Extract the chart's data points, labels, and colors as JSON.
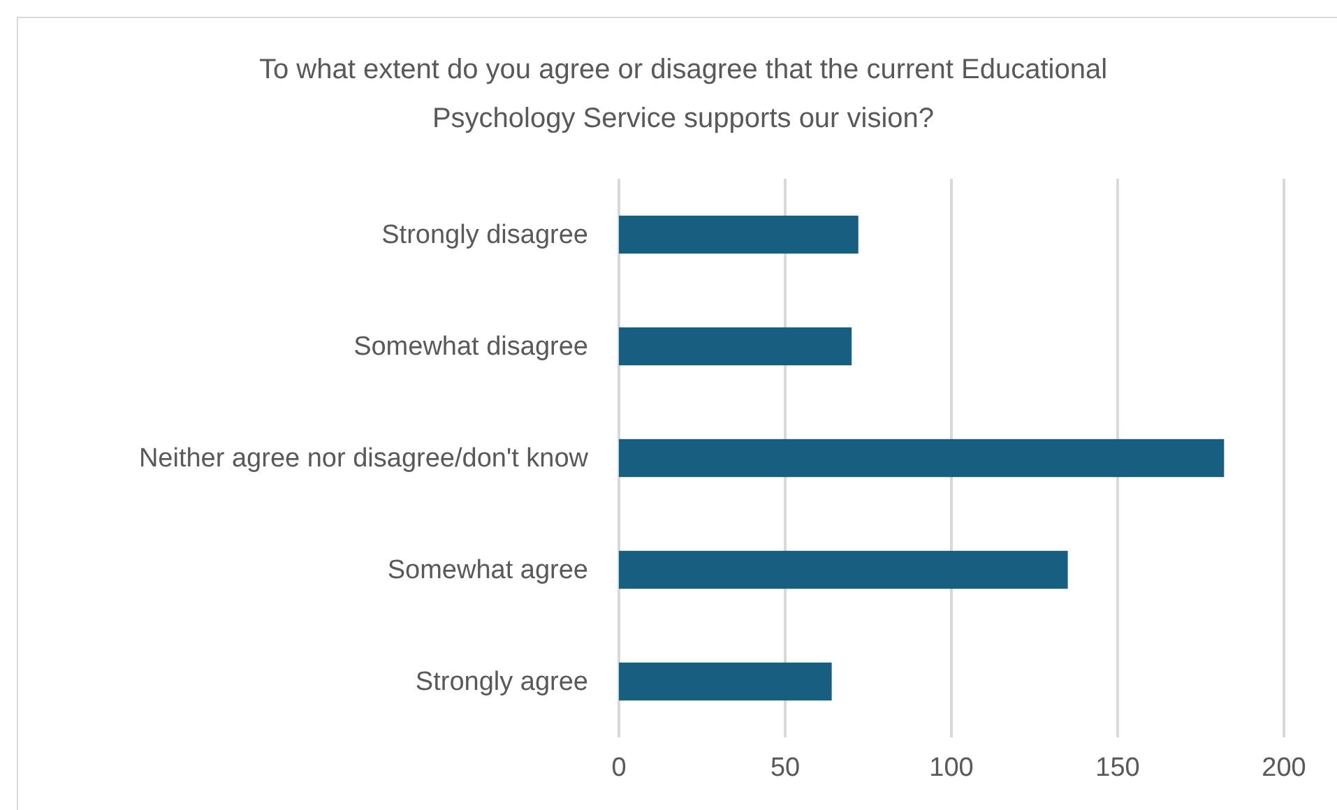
{
  "chart_data": {
    "type": "bar",
    "orientation": "horizontal",
    "title": "To what extent do you agree or disagree that the current Educational Psychology Service supports our vision?",
    "categories": [
      "Strongly disagree",
      "Somewhat disagree",
      "Neither agree nor disagree/don't know",
      "Somewhat agree",
      "Strongly agree"
    ],
    "values": [
      72,
      70,
      182,
      135,
      64
    ],
    "color": "#175e80",
    "xlim": [
      0,
      200
    ],
    "xticks": [
      0,
      50,
      100,
      150,
      200
    ],
    "grid": "x"
  }
}
